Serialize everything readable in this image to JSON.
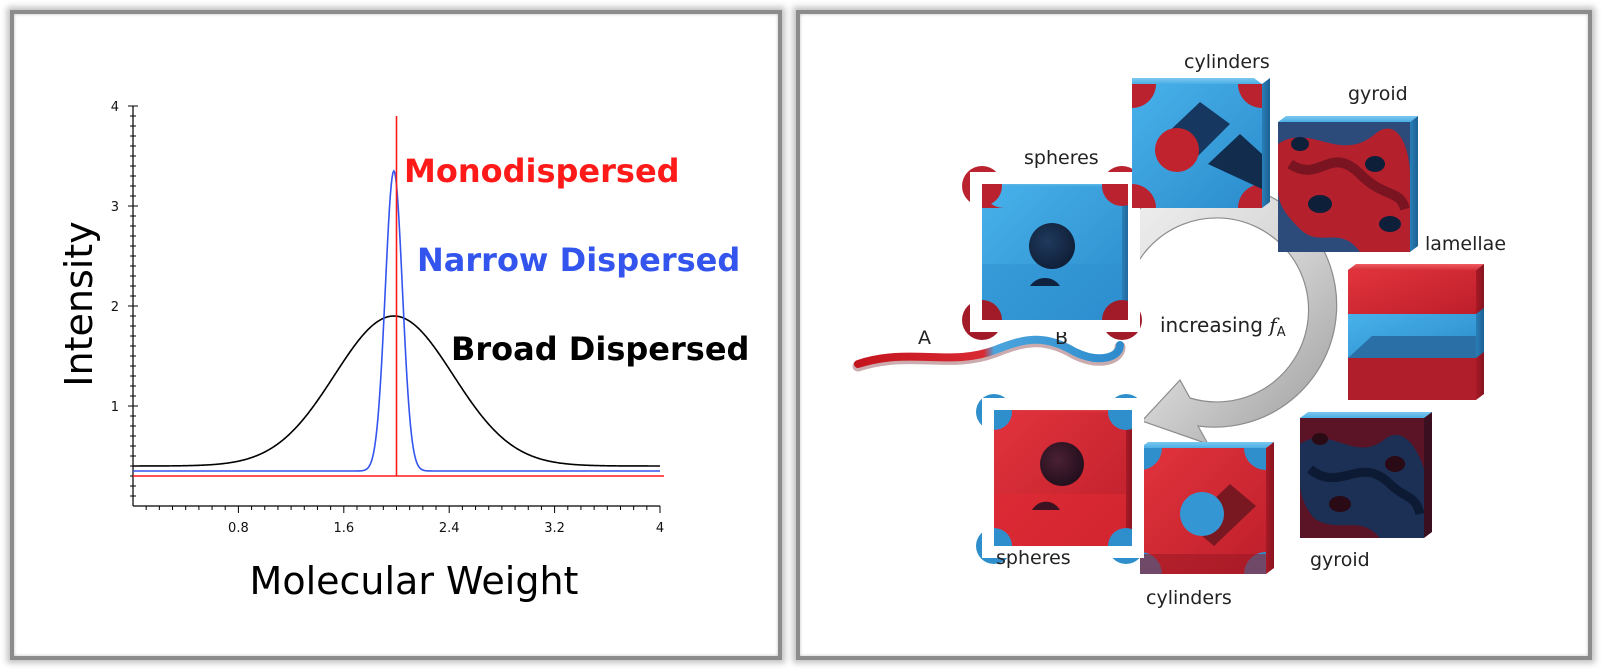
{
  "chart_data": {
    "type": "line",
    "title": "",
    "xlabel": "Molecular Weight",
    "ylabel": "Intensity",
    "xlim": [
      0,
      4
    ],
    "ylim": [
      0,
      4
    ],
    "x_ticks": [
      "0.8",
      "1.6",
      "2.4",
      "3.2",
      "4"
    ],
    "y_ticks": [
      "1",
      "2",
      "3",
      "4"
    ],
    "grid": false,
    "series": [
      {
        "name": "Monodispersed",
        "color": "#ff1a1a",
        "shape": "delta",
        "center": 2.0,
        "baseline": 0.3,
        "peak": 3.9
      },
      {
        "name": "Narrow Dispersed",
        "color": "#3355ee",
        "shape": "gaussian",
        "center": 1.98,
        "sigma": 0.065,
        "baseline": 0.35,
        "peak": 3.35
      },
      {
        "name": "Broad Dispersed",
        "color": "#000000",
        "shape": "gaussian",
        "center": 1.98,
        "sigma": 0.45,
        "baseline": 0.4,
        "peak": 1.9
      }
    ]
  },
  "diagram": {
    "center_label": "increasing",
    "center_symbol": "f",
    "center_subscript": "A",
    "chain_label_a": "A",
    "chain_label_b": "B",
    "phases": [
      {
        "label": "spheres",
        "type": "spheres",
        "majority": "blue"
      },
      {
        "label": "cylinders",
        "type": "cylinders",
        "majority": "blue"
      },
      {
        "label": "gyroid",
        "type": "gyroid",
        "majority": "red"
      },
      {
        "label": "lamellae",
        "type": "lamellae",
        "majority": "mixed"
      },
      {
        "label": "gyroid",
        "type": "gyroid",
        "majority": "dark"
      },
      {
        "label": "cylinders",
        "type": "cylinders",
        "majority": "red"
      },
      {
        "label": "spheres",
        "type": "spheres",
        "majority": "red"
      }
    ],
    "colors": {
      "blue": "#3aa0dc",
      "red": "#d42a35",
      "dark": "#6b1a2a"
    }
  }
}
